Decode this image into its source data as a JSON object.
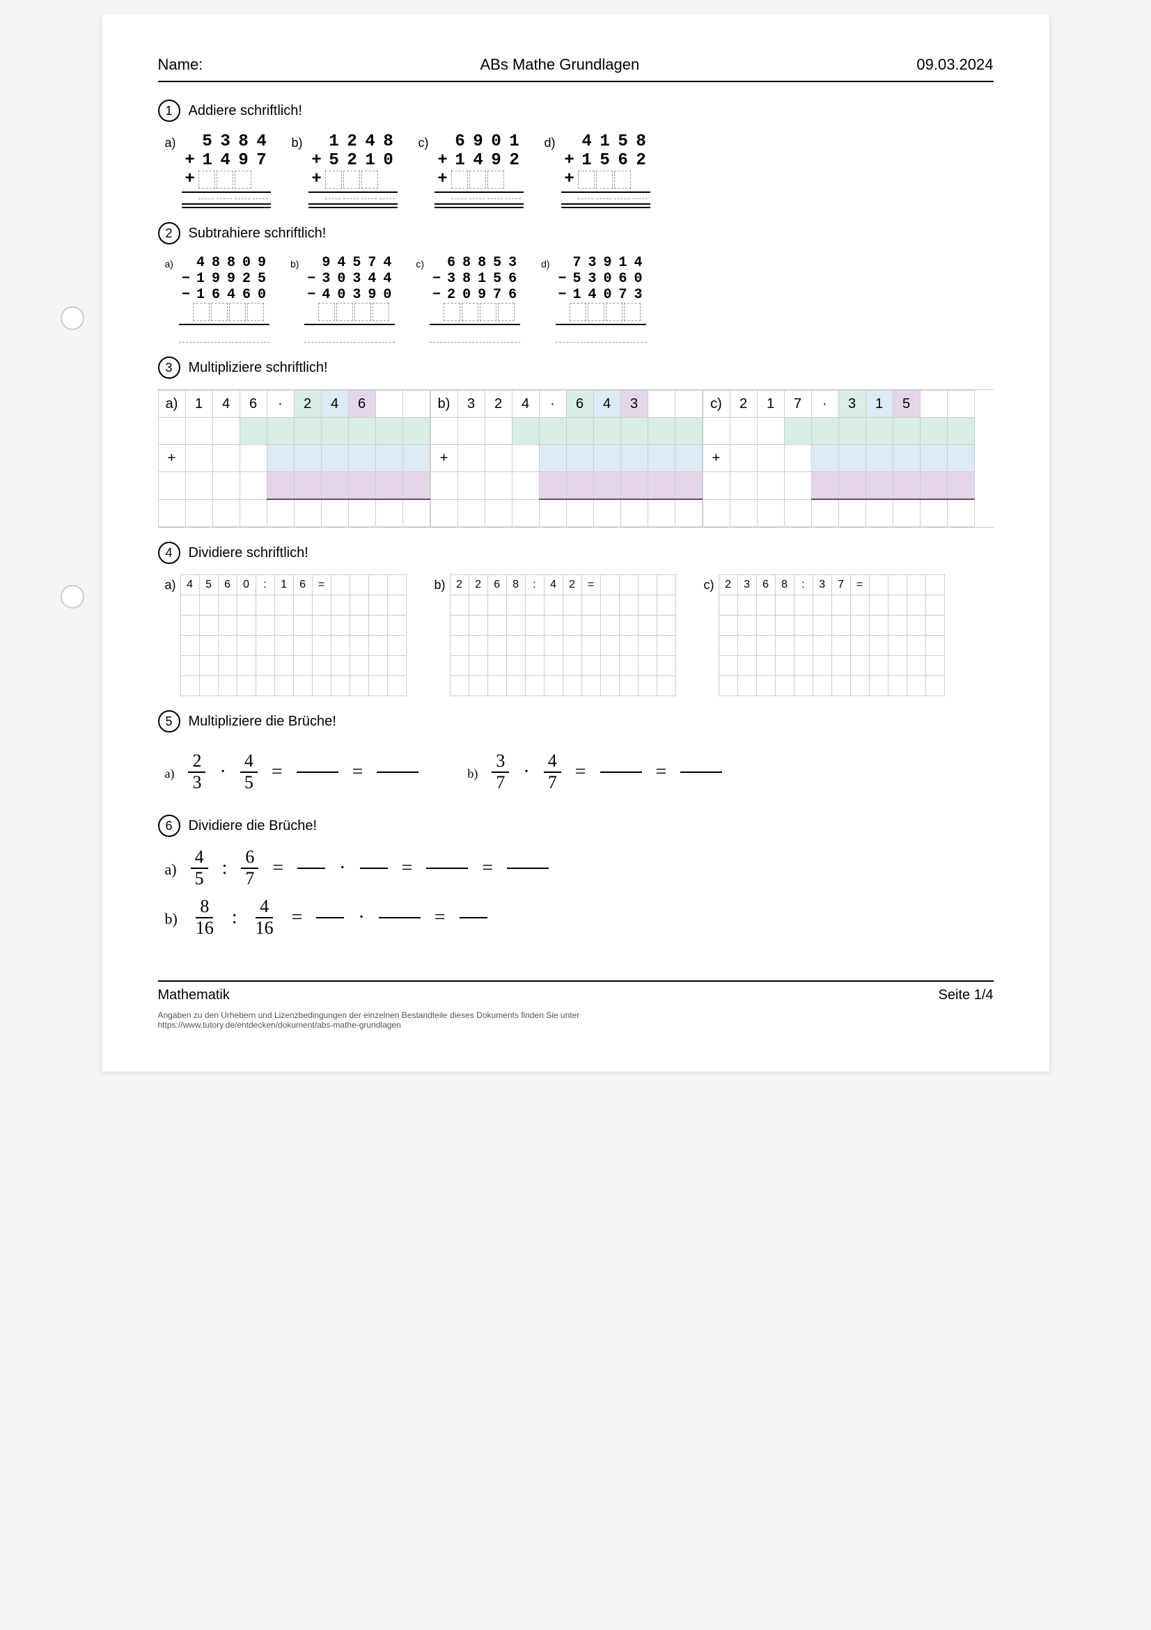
{
  "header": {
    "name_label": "Name:",
    "title": "ABs Mathe Grundlagen",
    "date": "09.03.2024"
  },
  "sections": {
    "s1": {
      "num": "1",
      "title": "Addiere schriftlich!"
    },
    "s2": {
      "num": "2",
      "title": "Subtrahiere schriftlich!"
    },
    "s3": {
      "num": "3",
      "title": "Multipliziere schriftlich!"
    },
    "s4": {
      "num": "4",
      "title": "Dividiere schriftlich!"
    },
    "s5": {
      "num": "5",
      "title": "Multipliziere die Brüche!"
    },
    "s6": {
      "num": "6",
      "title": "Dividiere die Brüche!"
    }
  },
  "add": {
    "a": {
      "label": "a)",
      "row1": [
        "5",
        "3",
        "8",
        "4"
      ],
      "row2": [
        "1",
        "4",
        "9",
        "7"
      ]
    },
    "b": {
      "label": "b)",
      "row1": [
        "1",
        "2",
        "4",
        "8"
      ],
      "row2": [
        "5",
        "2",
        "1",
        "0"
      ]
    },
    "c": {
      "label": "c)",
      "row1": [
        "6",
        "9",
        "0",
        "1"
      ],
      "row2": [
        "1",
        "4",
        "9",
        "2"
      ]
    },
    "d": {
      "label": "d)",
      "row1": [
        "4",
        "1",
        "5",
        "8"
      ],
      "row2": [
        "1",
        "5",
        "6",
        "2"
      ]
    }
  },
  "sub": {
    "a": {
      "label": "a)",
      "row1": [
        "4",
        "8",
        "8",
        "0",
        "9"
      ],
      "row2": [
        "1",
        "9",
        "9",
        "2",
        "5"
      ],
      "row3": [
        "1",
        "6",
        "4",
        "6",
        "0"
      ]
    },
    "b": {
      "label": "b)",
      "row1": [
        "9",
        "4",
        "5",
        "7",
        "4"
      ],
      "row2": [
        "3",
        "0",
        "3",
        "4",
        "4"
      ],
      "row3": [
        "4",
        "0",
        "3",
        "9",
        "0"
      ]
    },
    "c": {
      "label": "c)",
      "row1": [
        "6",
        "8",
        "8",
        "5",
        "3"
      ],
      "row2": [
        "3",
        "8",
        "1",
        "5",
        "6"
      ],
      "row3": [
        "2",
        "0",
        "9",
        "7",
        "6"
      ]
    },
    "d": {
      "label": "d)",
      "row1": [
        "7",
        "3",
        "9",
        "1",
        "4"
      ],
      "row2": [
        "5",
        "3",
        "0",
        "6",
        "0"
      ],
      "row3": [
        "1",
        "4",
        "0",
        "7",
        "3"
      ]
    }
  },
  "mult": {
    "a": {
      "label": "a)",
      "digits": [
        "1",
        "4",
        "6",
        "·",
        "2",
        "4",
        "6"
      ]
    },
    "b": {
      "label": "b)",
      "digits": [
        "3",
        "2",
        "4",
        "·",
        "6",
        "4",
        "3"
      ]
    },
    "c": {
      "label": "c)",
      "digits": [
        "2",
        "1",
        "7",
        "·",
        "3",
        "1",
        "5"
      ]
    }
  },
  "divp": {
    "a": {
      "label": "a)",
      "text": [
        "4",
        "5",
        "6",
        "0",
        ":",
        "1",
        "6",
        "="
      ]
    },
    "b": {
      "label": "b)",
      "text": [
        "2",
        "2",
        "6",
        "8",
        ":",
        "4",
        "2",
        "="
      ]
    },
    "c": {
      "label": "c)",
      "text": [
        "2",
        "3",
        "6",
        "8",
        ":",
        "3",
        "7",
        "="
      ]
    }
  },
  "frac_mult": {
    "a": {
      "label": "a)",
      "f1n": "2",
      "f1d": "3",
      "f2n": "4",
      "f2d": "5"
    },
    "b": {
      "label": "b)",
      "f1n": "3",
      "f1d": "7",
      "f2n": "4",
      "f2d": "7"
    }
  },
  "frac_div": {
    "a": {
      "label": "a)",
      "f1n": "4",
      "f1d": "5",
      "f2n": "6",
      "f2d": "7"
    },
    "b": {
      "label": "b)",
      "f1n": "8",
      "f1d": "16",
      "f2n": "4",
      "f2d": "16"
    }
  },
  "footer": {
    "subject": "Mathematik",
    "page": "Seite 1/4",
    "note1": "Angaben zu den Urhebern und Lizenzbedingungen der einzelnen Bestandteile dieses Dokuments finden Sie unter",
    "note2": "https://www.tutory.de/entdecken/dokument/abs-mathe-grundlagen"
  },
  "colors": {
    "green": "#d8ede5",
    "blue": "#dbeaf4",
    "purple": "#e5d5ea"
  }
}
